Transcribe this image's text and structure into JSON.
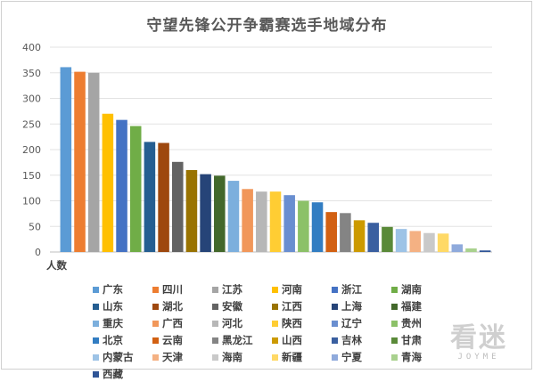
{
  "chart_data": {
    "type": "bar",
    "title": "守望先锋公开争霸赛选手地域分布",
    "xlabel": "",
    "ylabel": "人数",
    "ylim": [
      0,
      400
    ],
    "yticks": [
      0,
      50,
      100,
      150,
      200,
      250,
      300,
      350,
      400
    ],
    "grid": true,
    "legend_position": "bottom",
    "categories": [
      "广东",
      "四川",
      "江苏",
      "河南",
      "浙江",
      "湖南",
      "山东",
      "湖北",
      "安徽",
      "江西",
      "上海",
      "福建",
      "重庆",
      "广西",
      "河北",
      "陕西",
      "辽宁",
      "贵州",
      "北京",
      "云南",
      "黑龙江",
      "山西",
      "吉林",
      "甘肃",
      "内蒙古",
      "天津",
      "海南",
      "新疆",
      "宁夏",
      "青海",
      "西藏"
    ],
    "values": [
      361,
      352,
      350,
      270,
      258,
      246,
      215,
      213,
      176,
      160,
      152,
      149,
      139,
      123,
      118,
      118,
      111,
      100,
      97,
      78,
      76,
      62,
      57,
      49,
      45,
      41,
      37,
      36,
      15,
      7,
      3
    ],
    "colors": [
      "#5b9bd5",
      "#ed7d31",
      "#a5a5a5",
      "#ffc000",
      "#4472c4",
      "#70ad47",
      "#255e91",
      "#9e480e",
      "#636363",
      "#997300",
      "#264478",
      "#43682b",
      "#7cafdd",
      "#f1975a",
      "#b7b7b7",
      "#ffcd33",
      "#698ed0",
      "#8cc168",
      "#327dc2",
      "#d26012",
      "#848484",
      "#cc9a00",
      "#3a5fa0",
      "#5a8a39",
      "#9dc3e6",
      "#f4b183",
      "#c9c9c9",
      "#ffd966",
      "#8faadc",
      "#a9d18e",
      "#2f5597"
    ]
  },
  "watermark": {
    "main": "看迷",
    "sub": "JOYME"
  }
}
